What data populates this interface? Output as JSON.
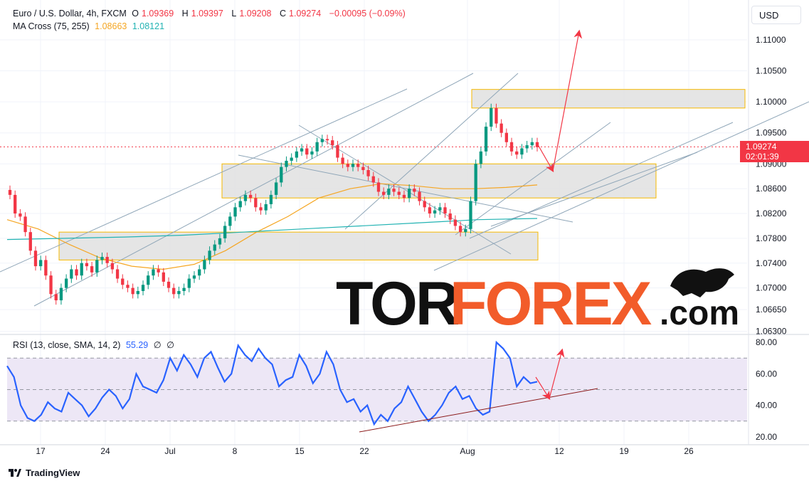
{
  "header": {
    "symbol_title": "Euro / U.S. Dollar, 4h, FXCM",
    "ohlc": {
      "o_label": "O",
      "o": "1.09369",
      "h_label": "H",
      "h": "1.09397",
      "l_label": "L",
      "l": "1.09208",
      "c_label": "C",
      "c": "1.09274",
      "change": "−0.00095 (−0.09%)"
    },
    "ma_label": "MA Cross (75, 255)",
    "ma_fast_value": "1.08663",
    "ma_slow_value": "1.08121",
    "currency_button": "USD"
  },
  "price_tag": {
    "price": "1.09274",
    "countdown": "02:01:39"
  },
  "rsi_legend": {
    "label": "RSI (13, close, SMA, 14, 2)",
    "value": "55.29",
    "extra1": "∅",
    "extra2": "∅"
  },
  "footer": {
    "brand": "TradingView"
  },
  "watermark": {
    "tor": "TOR",
    "forex": "FOREX",
    "dotcom": ".com"
  },
  "colors": {
    "bull": "#089981",
    "bear": "#f23645",
    "ma_fast": "#f5a623",
    "ma_slow": "#22b3b3",
    "rsi_line": "#2962ff",
    "rsi_band": "#ede7f6",
    "zone": "#e0e0e0",
    "zone_border": "#f5b800",
    "trend": "#8fa6b8",
    "arrow": "#f23645",
    "rsi_trend": "#8b1a1a"
  },
  "chart_data": [
    {
      "type": "candlestick",
      "title": "Euro / U.S. Dollar, 4h, FXCM",
      "x_tick_labels": [
        "17",
        "24",
        "Jul",
        "8",
        "15",
        "22",
        "Aug",
        "12",
        "19",
        "26"
      ],
      "y_tick_labels": [
        "1.11000",
        "1.10500",
        "1.10000",
        "1.09500",
        "1.09000",
        "1.08600",
        "1.08200",
        "1.07800",
        "1.07400",
        "1.07000",
        "1.06650",
        "1.06300"
      ],
      "ylim": [
        1.0625,
        1.1155
      ],
      "last_price": 1.09274,
      "candles_close": [
        1.085,
        1.082,
        1.0815,
        1.079,
        1.076,
        1.0735,
        1.0745,
        1.072,
        1.069,
        1.068,
        1.07,
        1.0715,
        1.073,
        1.072,
        1.074,
        1.0735,
        1.0725,
        1.0745,
        1.075,
        1.074,
        1.073,
        1.0715,
        1.0705,
        1.07,
        1.069,
        1.0695,
        1.0705,
        1.072,
        1.073,
        1.0725,
        1.071,
        1.07,
        1.069,
        1.0695,
        1.07,
        1.0715,
        1.072,
        1.073,
        1.0745,
        1.076,
        1.077,
        1.078,
        1.08,
        1.0815,
        1.083,
        1.084,
        1.085,
        1.0845,
        1.083,
        1.0825,
        1.0835,
        1.085,
        1.087,
        1.0895,
        1.0905,
        1.091,
        1.092,
        1.0925,
        1.0915,
        1.092,
        1.0935,
        1.094,
        1.0938,
        1.093,
        1.091,
        1.09,
        1.0895,
        1.09,
        1.0895,
        1.089,
        1.088,
        1.087,
        1.0855,
        1.085,
        1.086,
        1.0855,
        1.085,
        1.0845,
        1.086,
        1.0855,
        1.084,
        1.083,
        1.082,
        1.0825,
        1.083,
        1.082,
        1.081,
        1.08,
        1.079,
        1.0795,
        1.084,
        1.09,
        1.092,
        1.096,
        1.099,
        1.0965,
        1.095,
        1.0935,
        1.092,
        1.0915,
        1.0925,
        1.093,
        1.0935,
        1.0927
      ],
      "series": [
        {
          "name": "MA 75",
          "values": [
            1.081,
            1.0795,
            1.077,
            1.0748,
            1.0735,
            1.073,
            1.0738,
            1.076,
            1.079,
            1.0815,
            1.0845,
            1.086,
            1.0868,
            1.0865,
            1.086,
            1.086,
            1.0862,
            1.0866
          ]
        },
        {
          "name": "MA 255",
          "values": [
            1.0778,
            1.078,
            1.0782,
            1.0785,
            1.079,
            1.0795,
            1.08,
            1.0805,
            1.081,
            1.0812
          ]
        }
      ],
      "zones": [
        {
          "name": "resistance",
          "y_range": [
            1.099,
            1.102
          ]
        },
        {
          "name": "middle",
          "y_range": [
            1.0845,
            1.09
          ]
        },
        {
          "name": "support",
          "y_range": [
            1.0745,
            1.079
          ]
        }
      ]
    },
    {
      "type": "line",
      "title": "RSI (13, close, SMA, 14, 2)",
      "y_tick_labels": [
        "80.00",
        "60.00",
        "40.00",
        "20.00"
      ],
      "ylim": [
        15,
        85
      ],
      "band": [
        30,
        70
      ],
      "mid": 50,
      "series": [
        {
          "name": "RSI",
          "values": [
            65,
            58,
            40,
            32,
            30,
            34,
            42,
            38,
            36,
            48,
            44,
            40,
            33,
            38,
            45,
            50,
            46,
            38,
            44,
            60,
            52,
            50,
            48,
            56,
            70,
            62,
            72,
            66,
            58,
            70,
            74,
            64,
            55,
            60,
            78,
            72,
            68,
            76,
            70,
            66,
            52,
            56,
            58,
            72,
            65,
            54,
            60,
            74,
            66,
            50,
            42,
            44,
            36,
            40,
            28,
            34,
            30,
            38,
            42,
            52,
            44,
            36,
            30,
            34,
            40,
            48,
            52,
            44,
            46,
            38,
            34,
            36,
            80,
            76,
            70,
            52,
            58,
            54,
            55
          ]
        }
      ]
    }
  ]
}
